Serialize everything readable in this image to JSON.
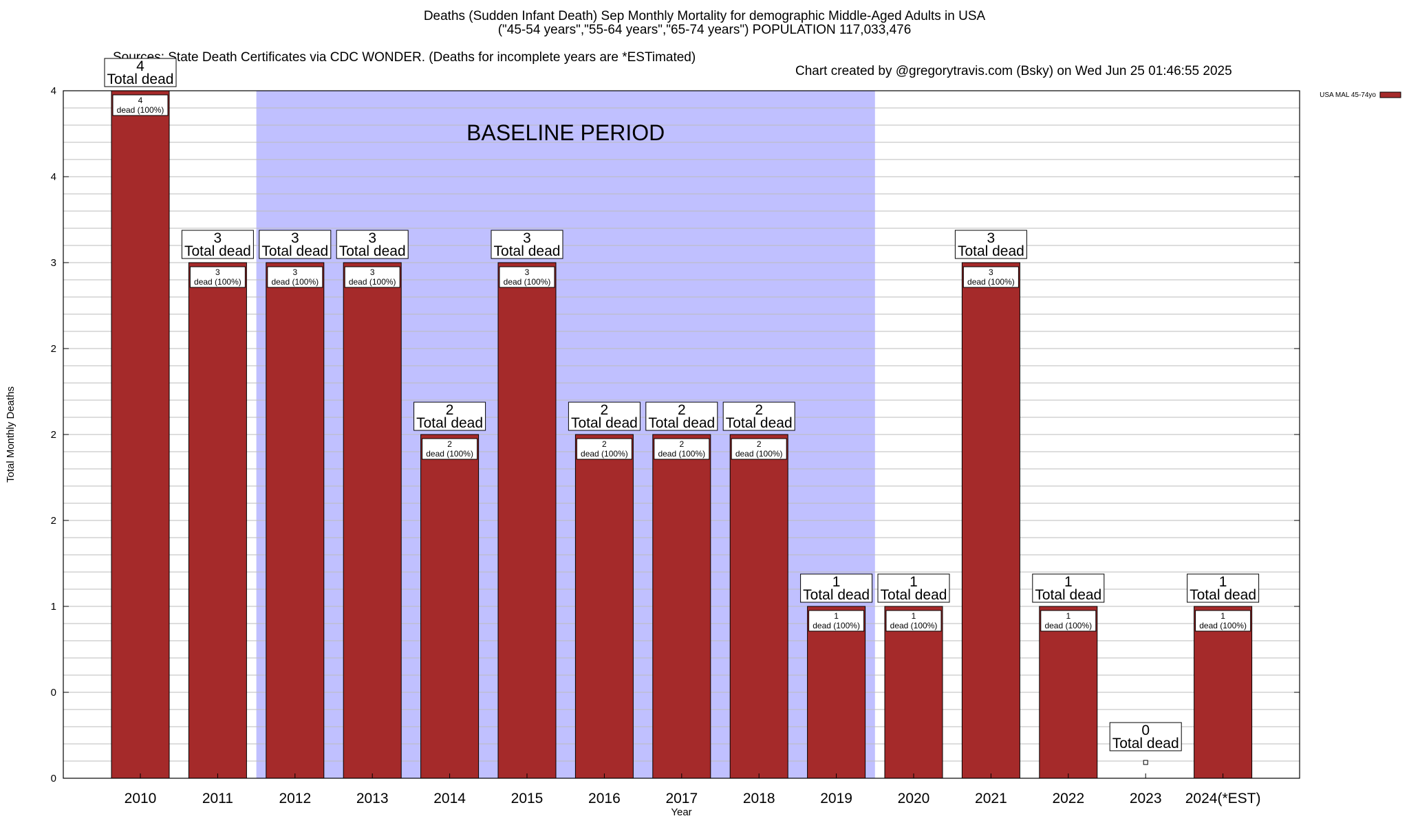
{
  "header": {
    "title_line1": "Deaths (Sudden Infant Death) Sep Monthly Mortality for demographic Middle-Aged Adults in USA",
    "title_line2": "(\"45-54 years\",\"55-64 years\",\"65-74 years\") POPULATION 117,033,476",
    "sources": "Sources: State Death Certificates via CDC WONDER. (Deaths for incomplete years are *ESTimated)",
    "credit": "Chart created by @gregorytravis.com (Bsky) on Wed Jun 25 01:46:55 2025"
  },
  "chart_data": {
    "type": "bar",
    "xlabel": "Year",
    "ylabel": "Total Monthly Deaths",
    "ylim": [
      0,
      4
    ],
    "y_tick_labels": [
      "0",
      "0",
      "1",
      "2",
      "2",
      "2",
      "3",
      "4",
      "4"
    ],
    "categories": [
      "2010",
      "2011",
      "2012",
      "2013",
      "2014",
      "2015",
      "2016",
      "2017",
      "2018",
      "2019",
      "2020",
      "2021",
      "2022",
      "2023",
      "2024(*EST)"
    ],
    "series": [
      {
        "name": "USA MAL 45-74yo",
        "values": [
          4,
          3,
          3,
          3,
          2,
          3,
          2,
          2,
          2,
          1,
          1,
          3,
          1,
          0,
          1
        ]
      }
    ],
    "total_label_suffix": "Total dead",
    "inner_label_suffix": "dead (100%)",
    "baseline": {
      "label": "BASELINE PERIOD",
      "from": "2012",
      "to": "2019"
    },
    "grid": true,
    "legend_position": "top-right",
    "colors": {
      "bar": "#a52a2a",
      "baseline": "#c0c0ff",
      "grid": "#bbbbbb"
    }
  }
}
